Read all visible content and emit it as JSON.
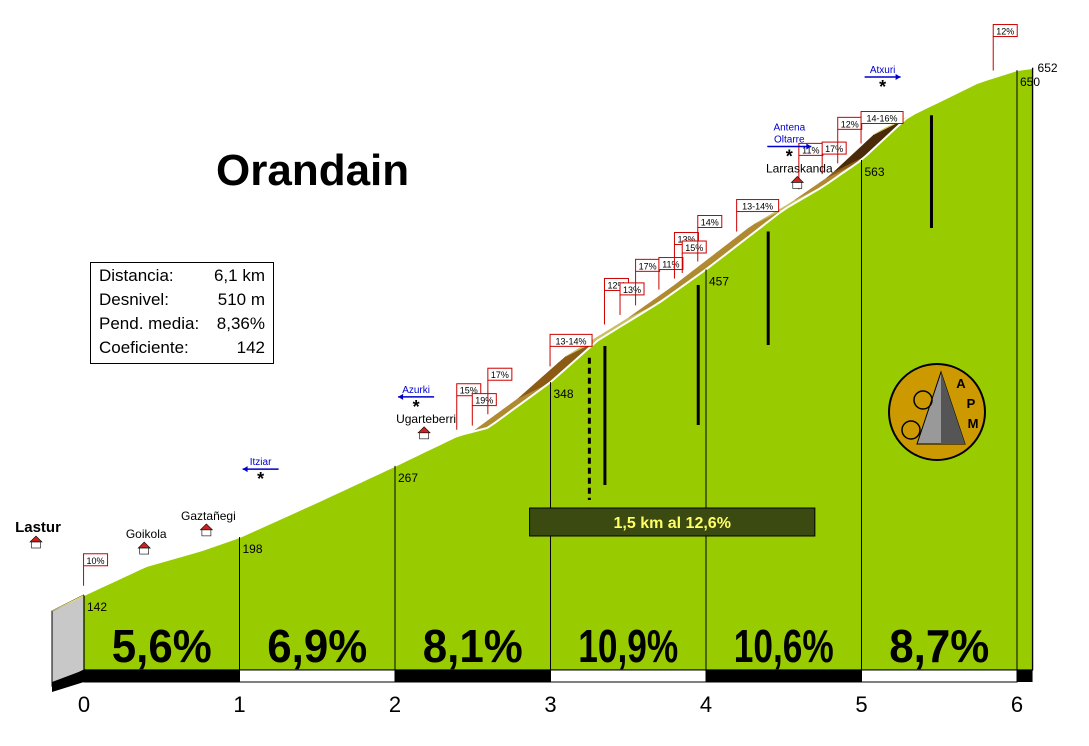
{
  "title": "Orandain",
  "info": {
    "rows": [
      {
        "label": "Distancia:",
        "value": "6,1 km"
      },
      {
        "label": "Desnivel:",
        "value": "510 m"
      },
      {
        "label": "Pend. media:",
        "value": "8,36%"
      },
      {
        "label": "Coeficiente:",
        "value": "142"
      }
    ]
  },
  "chart_data": {
    "type": "area",
    "title": "Orandain",
    "xlabel": "",
    "ylabel": "",
    "xlim": [
      0,
      6.1
    ],
    "x_ticks": [
      "0",
      "1",
      "2",
      "3",
      "4",
      "5",
      "6"
    ],
    "profile": [
      {
        "x": 0,
        "y": 142
      },
      {
        "x": 0.4,
        "y": 170
      },
      {
        "x": 0.75,
        "y": 185
      },
      {
        "x": 1,
        "y": 198
      },
      {
        "x": 1.5,
        "y": 232
      },
      {
        "x": 2,
        "y": 267
      },
      {
        "x": 2.4,
        "y": 296
      },
      {
        "x": 2.6,
        "y": 304
      },
      {
        "x": 2.8,
        "y": 326
      },
      {
        "x": 3,
        "y": 348
      },
      {
        "x": 3.3,
        "y": 388
      },
      {
        "x": 3.7,
        "y": 425
      },
      {
        "x": 4,
        "y": 457
      },
      {
        "x": 4.5,
        "y": 515
      },
      {
        "x": 4.75,
        "y": 537
      },
      {
        "x": 5,
        "y": 563
      },
      {
        "x": 5.3,
        "y": 605
      },
      {
        "x": 5.75,
        "y": 638
      },
      {
        "x": 6,
        "y": 650
      },
      {
        "x": 6.1,
        "y": 652
      }
    ],
    "km_altitude_labels": [
      {
        "x": 0,
        "label": "142"
      },
      {
        "x": 1,
        "label": "198"
      },
      {
        "x": 2,
        "label": "267"
      },
      {
        "x": 3,
        "label": "348"
      },
      {
        "x": 4,
        "label": "457"
      },
      {
        "x": 5,
        "label": "563"
      },
      {
        "x": 6,
        "label": "650"
      },
      {
        "x": 6.1,
        "label": "652"
      }
    ],
    "segments": [
      {
        "from": 0,
        "to": 1,
        "label": "5,6%"
      },
      {
        "from": 1,
        "to": 2,
        "label": "6,9%"
      },
      {
        "from": 2,
        "to": 3,
        "label": "8,1%"
      },
      {
        "from": 3,
        "to": 4,
        "label": "10,9%"
      },
      {
        "from": 4,
        "to": 5,
        "label": "10,6%"
      },
      {
        "from": 5,
        "to": 6.1,
        "label": "8,7%"
      }
    ],
    "gradient_flags": [
      {
        "x": 0.1,
        "label": "10%"
      },
      {
        "x": 2.5,
        "label": "15%"
      },
      {
        "x": 2.6,
        "label": "19%"
      },
      {
        "x": 2.7,
        "label": "17%"
      },
      {
        "x": 3.1,
        "label": "13-14%"
      },
      {
        "x": 3.45,
        "label": "12%"
      },
      {
        "x": 3.55,
        "label": "13%"
      },
      {
        "x": 3.65,
        "label": "17%"
      },
      {
        "x": 3.8,
        "label": "11%"
      },
      {
        "x": 3.9,
        "label": "13%"
      },
      {
        "x": 3.95,
        "label": "15%"
      },
      {
        "x": 4.05,
        "label": "14%"
      },
      {
        "x": 4.3,
        "label": "13-14%"
      },
      {
        "x": 4.7,
        "label": "11%"
      },
      {
        "x": 4.85,
        "label": "17%"
      },
      {
        "x": 4.95,
        "label": "12%"
      },
      {
        "x": 5.1,
        "label": "14-16%"
      },
      {
        "x": 5.95,
        "label": "12%"
      }
    ],
    "places": [
      {
        "x": -0.2,
        "label": "Lastur"
      },
      {
        "x": 0.4,
        "label": "Goikola"
      },
      {
        "x": 0.8,
        "label": "Gaztañegi"
      },
      {
        "x": 2.2,
        "label": "Ugarteberri"
      },
      {
        "x": 4.6,
        "label": "Larraskanda"
      }
    ],
    "junctions": [
      {
        "x": 1.2,
        "label": "Itziar",
        "dir": "left"
      },
      {
        "x": 2.2,
        "label": "Azurki",
        "dir": "left"
      },
      {
        "x": 4.6,
        "label": "Antena Oltarre",
        "dir": "right"
      },
      {
        "x": 5.2,
        "label": "Atxuri",
        "dir": "right"
      }
    ],
    "callout": {
      "label": "1,5 km al 12,6%",
      "from": 3.2,
      "to": 4.7
    }
  },
  "logo": {
    "text": "APM"
  },
  "colors": {
    "area": "#99cc00",
    "road_light": "#ddd25a",
    "road_dark": "#8b5a14",
    "callout_bg": "#3a4a10",
    "callout_text": "#ffff66",
    "flag_border": "#cc0000",
    "junction": "#0000cc"
  }
}
